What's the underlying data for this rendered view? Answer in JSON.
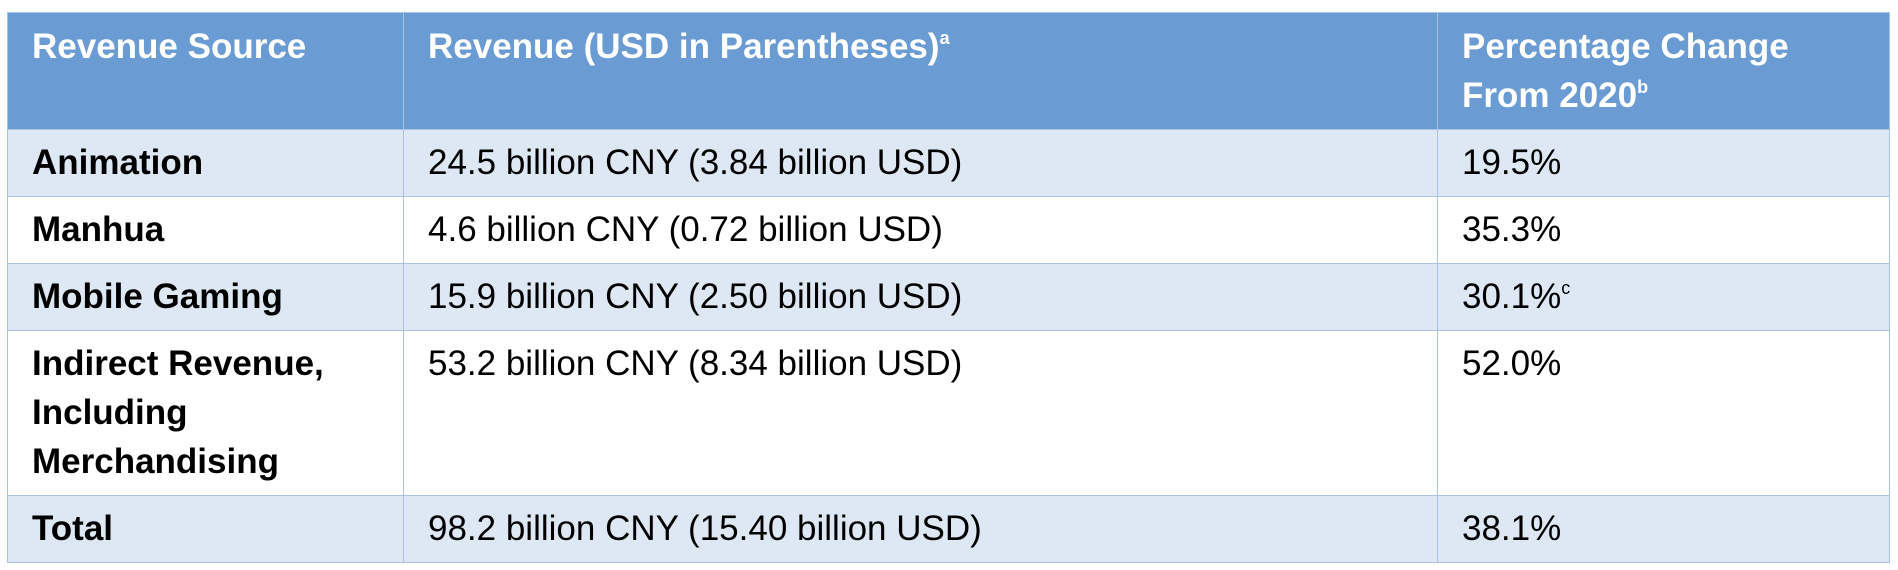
{
  "table": {
    "header": [
      {
        "text": "Revenue Source"
      },
      {
        "text": "Revenue (USD in Parentheses)",
        "note": "a"
      },
      {
        "text": "Percentage Change From 2020",
        "note": "b"
      }
    ],
    "rows": [
      [
        {
          "text": "Animation"
        },
        {
          "text": "24.5 billion CNY (3.84 billion USD)"
        },
        {
          "text": "19.5%"
        }
      ],
      [
        {
          "text": "Manhua"
        },
        {
          "text": "4.6 billion CNY (0.72 billion USD)"
        },
        {
          "text": "35.3%"
        }
      ],
      [
        {
          "text": "Mobile Gaming"
        },
        {
          "text": "15.9 billion CNY (2.50 billion USD)"
        },
        {
          "text": "30.1%",
          "note": "c"
        }
      ],
      [
        {
          "text": "Indirect Revenue, Including Merchandising"
        },
        {
          "text": "53.2 billion CNY (8.34 billion USD)"
        },
        {
          "text": "52.0%"
        }
      ],
      [
        {
          "text": "Total"
        },
        {
          "text": "98.2 billion CNY (15.40 billion USD)"
        },
        {
          "text": "38.1%"
        }
      ]
    ]
  }
}
